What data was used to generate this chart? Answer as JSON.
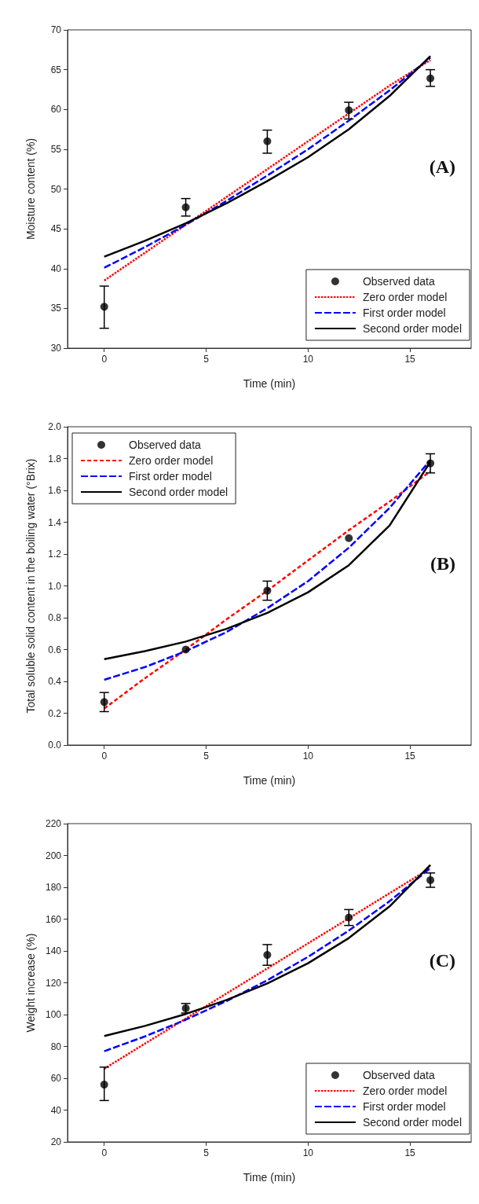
{
  "chart_data": [
    {
      "type": "line",
      "xlabel": "Time (min)",
      "ylabel": "Moisture content (%)",
      "xlim": [
        -1.8,
        18
      ],
      "xticks": [
        0,
        5,
        10,
        15
      ],
      "ylim": [
        30,
        70
      ],
      "yticks": [
        30,
        35,
        40,
        45,
        50,
        55,
        60,
        65,
        70
      ],
      "legend": "bottom right",
      "annotations": [
        "(A)"
      ],
      "series": [
        {
          "name": "Observed data",
          "type": "scatter",
          "marker": "circle",
          "color": "#000000",
          "x": [
            0,
            4,
            8,
            12,
            16
          ],
          "values": [
            35.2,
            47.7,
            56,
            59.9,
            63.9
          ],
          "errors": [
            [
              32.5,
              37.8
            ],
            [
              46.6,
              48.8
            ],
            [
              54.5,
              57.4
            ],
            [
              58.8,
              60.9
            ],
            [
              62.9,
              65
            ]
          ]
        },
        {
          "name": "Zero order model",
          "type": "line",
          "marker": "none",
          "line_style": "dotted",
          "color": "#ff0000",
          "x": [
            0,
            2,
            4,
            6,
            8,
            10,
            12,
            14,
            16
          ],
          "values": [
            38.5,
            42,
            45.5,
            49,
            52.5,
            56,
            59.5,
            63,
            66.2
          ]
        },
        {
          "name": "First order model",
          "type": "line",
          "marker": "none",
          "line_style": "dashed",
          "color": "#0000ff",
          "x": [
            0,
            2,
            4,
            6,
            8,
            10,
            12,
            14,
            16
          ],
          "values": [
            40.1,
            42.7,
            45.5,
            48.5,
            51.7,
            55,
            58.6,
            62.4,
            66.5
          ]
        },
        {
          "name": "Second order model",
          "type": "line",
          "marker": "none",
          "line_style": "solid",
          "color": "#000000",
          "x": [
            0,
            2,
            4,
            6,
            8,
            10,
            12,
            14,
            16
          ],
          "values": [
            41.5,
            43.5,
            45.7,
            48.2,
            51,
            54,
            57.5,
            61.7,
            66.7
          ]
        }
      ]
    },
    {
      "type": "line",
      "xlabel": "Time (min)",
      "ylabel": "Total soluble solid content in the boiling water (°Brix)",
      "xlim": [
        -1.8,
        18
      ],
      "xticks": [
        0,
        5,
        10,
        15
      ],
      "ylim": [
        0,
        2
      ],
      "yticks": [
        {
          "value": 0,
          "label": "0.0"
        },
        {
          "value": 0.2,
          "label": "0.2"
        },
        {
          "value": 0.4,
          "label": "0.4"
        },
        {
          "value": 0.6,
          "label": "0.6"
        },
        {
          "value": 0.8,
          "label": "0.8"
        },
        {
          "value": 1,
          "label": "1.0"
        },
        {
          "value": 1.2,
          "label": "1.2"
        },
        {
          "value": 1.4,
          "label": "1.4"
        },
        {
          "value": 1.6,
          "label": "1.6"
        },
        {
          "value": 1.8,
          "label": "1.8"
        },
        {
          "value": 2,
          "label": "2.0"
        }
      ],
      "legend": "top left",
      "annotations": [
        "(B)"
      ],
      "series": [
        {
          "name": "Observed data",
          "type": "scatter",
          "marker": "circle",
          "color": "#000000",
          "x": [
            0,
            4,
            8,
            12,
            16
          ],
          "values": [
            0.27,
            0.6,
            0.97,
            1.3,
            1.77
          ],
          "errors": [
            [
              0.21,
              0.33
            ],
            null,
            [
              0.91,
              1.03
            ],
            null,
            [
              1.71,
              1.83
            ]
          ]
        },
        {
          "name": "Zero order model",
          "type": "line",
          "marker": "none",
          "line_style": "dashed",
          "color": "#ff0000",
          "x": [
            0,
            2,
            4,
            6,
            8,
            10,
            12,
            14,
            16
          ],
          "values": [
            0.23,
            0.42,
            0.6,
            0.79,
            0.97,
            1.16,
            1.35,
            1.53,
            1.72
          ]
        },
        {
          "name": "First order model",
          "type": "line",
          "marker": "none",
          "line_style": "dashed",
          "color": "#0000ff",
          "x": [
            0,
            2,
            4,
            6,
            8,
            10,
            12,
            14,
            16
          ],
          "values": [
            0.41,
            0.49,
            0.59,
            0.71,
            0.86,
            1.03,
            1.24,
            1.49,
            1.79
          ]
        },
        {
          "name": "Second order model",
          "type": "line",
          "marker": "none",
          "line_style": "solid",
          "color": "#000000",
          "x": [
            0,
            2,
            4,
            6,
            8,
            10,
            12,
            14,
            16
          ],
          "values": [
            0.54,
            0.59,
            0.65,
            0.73,
            0.83,
            0.96,
            1.13,
            1.38,
            1.78
          ]
        }
      ]
    },
    {
      "type": "line",
      "xlabel": "Time (min)",
      "ylabel": "Weight increase (%)",
      "xlim": [
        -1.8,
        18
      ],
      "xticks": [
        0,
        5,
        10,
        15
      ],
      "ylim": [
        20,
        220
      ],
      "yticks": [
        20,
        40,
        60,
        80,
        100,
        120,
        140,
        160,
        180,
        200,
        220
      ],
      "legend": "bottom right",
      "annotations": [
        "(C)"
      ],
      "series": [
        {
          "name": "Observed data",
          "type": "scatter",
          "marker": "circle",
          "color": "#000000",
          "x": [
            0,
            4,
            8,
            12,
            16
          ],
          "values": [
            56,
            104,
            137.5,
            161,
            184.5
          ],
          "errors": [
            [
              46,
              67
            ],
            [
              101,
              107
            ],
            [
              131,
              144
            ],
            [
              156,
              166
            ],
            [
              180,
              189
            ]
          ]
        },
        {
          "name": "Zero order model",
          "type": "line",
          "marker": "none",
          "line_style": "dotted",
          "color": "#ff0000",
          "x": [
            0,
            2,
            4,
            6,
            8,
            10,
            12,
            14,
            16
          ],
          "values": [
            66,
            81.8,
            97.5,
            113.3,
            129,
            144.8,
            160.5,
            176.3,
            192
          ]
        },
        {
          "name": "First order model",
          "type": "line",
          "marker": "none",
          "line_style": "dashed",
          "color": "#0000ff",
          "x": [
            0,
            2,
            4,
            6,
            8,
            10,
            12,
            14,
            16
          ],
          "values": [
            77,
            86.3,
            96.8,
            108.5,
            121.6,
            136.3,
            152.8,
            171.3,
            192
          ]
        },
        {
          "name": "Second order model",
          "type": "line",
          "marker": "none",
          "line_style": "solid",
          "color": "#000000",
          "x": [
            0,
            2,
            4,
            6,
            8,
            10,
            12,
            14,
            16
          ],
          "values": [
            86.5,
            92.9,
            100.4,
            109.2,
            119.6,
            132.3,
            148.1,
            168,
            194
          ]
        }
      ]
    }
  ]
}
